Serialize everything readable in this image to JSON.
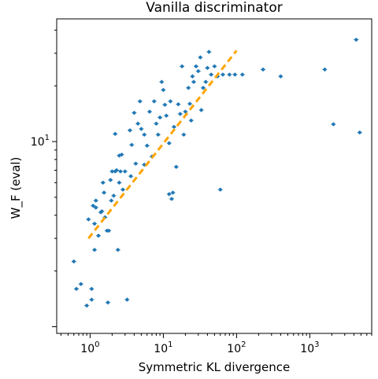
{
  "chart_data": {
    "type": "scatter",
    "title": "Vanilla discriminator",
    "xlabel": "Symmetric KL divergence",
    "ylabel": "W_F (eval)",
    "x_scale": "log",
    "y_scale": "log",
    "xlim": [
      0.35,
      7000
    ],
    "ylim": [
      0.92,
      46
    ],
    "x_ticks": [
      {
        "value": 1,
        "label": "10^0"
      },
      {
        "value": 10,
        "label": "10^1"
      },
      {
        "value": 100,
        "label": "10^2"
      },
      {
        "value": 1000,
        "label": "10^3"
      }
    ],
    "y_ticks": [
      {
        "value": 10,
        "label": "10^1"
      }
    ],
    "grid": false,
    "series": [
      {
        "color": "#1f77b4",
        "marker": "point-with-errorbars",
        "points": [
          [
            0.6,
            2.25
          ],
          [
            0.65,
            1.6
          ],
          [
            0.75,
            1.7
          ],
          [
            0.9,
            1.3
          ],
          [
            1.05,
            1.6
          ],
          [
            1.05,
            1.4
          ],
          [
            0.95,
            3.8
          ],
          [
            1.1,
            4.5
          ],
          [
            1.15,
            3.6
          ],
          [
            1.2,
            4.4
          ],
          [
            1.2,
            4.8
          ],
          [
            1.15,
            2.6
          ],
          [
            1.3,
            3.1
          ],
          [
            1.4,
            4.15
          ],
          [
            1.45,
            4.2
          ],
          [
            1.5,
            6.0
          ],
          [
            1.55,
            5.3
          ],
          [
            1.6,
            3.9
          ],
          [
            1.7,
            3.3
          ],
          [
            1.8,
            3.3
          ],
          [
            1.75,
            1.35
          ],
          [
            1.9,
            6.2
          ],
          [
            1.95,
            4.8
          ],
          [
            2.0,
            6.9
          ],
          [
            2.1,
            5.1
          ],
          [
            2.2,
            6.9
          ],
          [
            2.3,
            7.0
          ],
          [
            2.4,
            2.6
          ],
          [
            2.5,
            6.0
          ],
          [
            2.6,
            6.9
          ],
          [
            2.8,
            5.5
          ],
          [
            3.0,
            6.9
          ],
          [
            2.7,
            8.5
          ],
          [
            2.2,
            11.0
          ],
          [
            2.5,
            8.4
          ],
          [
            3.2,
            1.4
          ],
          [
            3.5,
            11.5
          ],
          [
            3.6,
            6.5
          ],
          [
            3.7,
            9.6
          ],
          [
            4.0,
            14.3
          ],
          [
            4.2,
            7.6
          ],
          [
            4.5,
            12.5
          ],
          [
            4.8,
            16.5
          ],
          [
            5.0,
            11.7
          ],
          [
            5.5,
            10.9
          ],
          [
            5.5,
            7.5
          ],
          [
            6.0,
            9.5
          ],
          [
            6.5,
            14.5
          ],
          [
            7.0,
            8.3
          ],
          [
            7.5,
            16.5
          ],
          [
            8.0,
            12.5
          ],
          [
            8.5,
            10.9
          ],
          [
            9.0,
            13.5
          ],
          [
            9.5,
            21.0
          ],
          [
            10.0,
            19.0
          ],
          [
            10.5,
            15.8
          ],
          [
            11.0,
            13.8
          ],
          [
            12.0,
            9.8
          ],
          [
            12.5,
            16.5
          ],
          [
            12.0,
            5.2
          ],
          [
            13.0,
            4.9
          ],
          [
            13.5,
            5.3
          ],
          [
            14.0,
            12.0
          ],
          [
            15.0,
            7.3
          ],
          [
            16.0,
            15.9
          ],
          [
            17.0,
            14.1
          ],
          [
            18.0,
            25.5
          ],
          [
            19.0,
            10.9
          ],
          [
            20.0,
            14.5
          ],
          [
            22.0,
            19.5
          ],
          [
            23.0,
            16.0
          ],
          [
            24.0,
            13.0
          ],
          [
            25.0,
            22.5
          ],
          [
            26.0,
            21.0
          ],
          [
            28.0,
            25.5
          ],
          [
            30.0,
            24.0
          ],
          [
            32.0,
            28.5
          ],
          [
            33.0,
            14.8
          ],
          [
            35.0,
            19.5
          ],
          [
            38.0,
            21.0
          ],
          [
            40.0,
            25.0
          ],
          [
            42.0,
            30.5
          ],
          [
            45.0,
            23.0
          ],
          [
            50.0,
            25.5
          ],
          [
            55.0,
            22.5
          ],
          [
            60.0,
            5.5
          ],
          [
            65.0,
            23.0
          ],
          [
            80.0,
            23.0
          ],
          [
            95.0,
            23.0
          ],
          [
            120.0,
            23.0
          ],
          [
            230.0,
            24.5
          ],
          [
            400.0,
            22.5
          ],
          [
            1600.0,
            24.5
          ],
          [
            2100.0,
            12.4
          ],
          [
            4300.0,
            35.5
          ],
          [
            4800.0,
            11.2
          ]
        ]
      }
    ],
    "fit_line": {
      "color": "#ffa500",
      "style": "dashed",
      "from": [
        0.95,
        3.0
      ],
      "to": [
        100,
        31.0
      ]
    }
  }
}
